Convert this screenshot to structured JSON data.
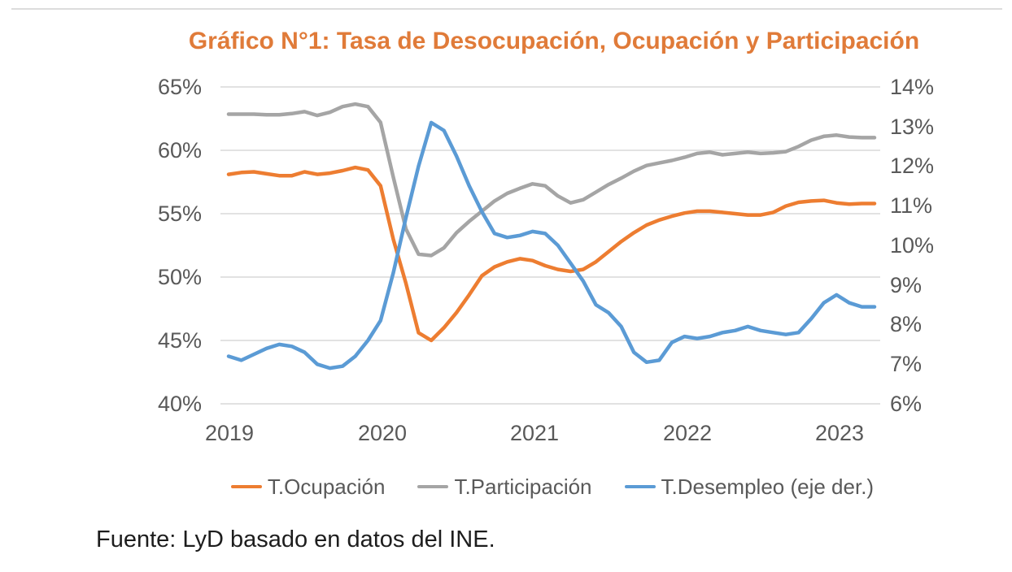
{
  "title": "Gráfico N°1: Tasa de Desocupación, Ocupación y Participación",
  "source_note": "Fuente: LyD basado en datos del INE.",
  "colors": {
    "title_orange": "#E07B39",
    "series_orange": "#ED7D31",
    "series_gray": "#A5A5A5",
    "series_blue": "#5B9BD5",
    "axis_text": "#595959",
    "gridline": "#D9D9D9"
  },
  "chart_data": {
    "type": "line",
    "title": "Gráfico N°1: Tasa de Desocupación, Ocupación y Participación",
    "x_unit": "month",
    "x_start": "2019-01",
    "x_end": "2023-04",
    "x_tick_labels": [
      "2019",
      "2020",
      "2021",
      "2022",
      "2023"
    ],
    "grid": "horizontal",
    "legend_position": "bottom",
    "left_axis": {
      "min": 40,
      "max": 65,
      "ticks": [
        "65%",
        "60%",
        "55%",
        "50%",
        "45%",
        "40%"
      ]
    },
    "right_axis": {
      "min": 6,
      "max": 14,
      "ticks": [
        "14%",
        "13%",
        "12%",
        "11%",
        "10%",
        "9%",
        "8%",
        "7%",
        "6%"
      ]
    },
    "series": [
      {
        "name": "T.Ocupación",
        "axis": "left",
        "color": "#ED7D31",
        "values": [
          58.1,
          58.25,
          58.3,
          58.15,
          58.0,
          58.0,
          58.3,
          58.1,
          58.2,
          58.4,
          58.65,
          58.45,
          57.2,
          53.0,
          49.5,
          45.6,
          45.0,
          46.0,
          47.2,
          48.6,
          50.1,
          50.8,
          51.2,
          51.45,
          51.3,
          50.9,
          50.6,
          50.45,
          50.6,
          51.2,
          52.0,
          52.8,
          53.5,
          54.1,
          54.5,
          54.8,
          55.05,
          55.2,
          55.2,
          55.1,
          55.0,
          54.9,
          54.9,
          55.1,
          55.6,
          55.9,
          56.0,
          56.05,
          55.85,
          55.75,
          55.8,
          55.8
        ]
      },
      {
        "name": "T.Participación",
        "axis": "left",
        "color": "#A5A5A5",
        "values": [
          62.85,
          62.85,
          62.85,
          62.8,
          62.8,
          62.9,
          63.05,
          62.75,
          63.0,
          63.45,
          63.65,
          63.45,
          62.2,
          57.9,
          53.8,
          51.8,
          51.7,
          52.3,
          53.5,
          54.4,
          55.2,
          56.0,
          56.6,
          57.0,
          57.35,
          57.2,
          56.4,
          55.85,
          56.1,
          56.7,
          57.3,
          57.8,
          58.35,
          58.8,
          59.0,
          59.2,
          59.45,
          59.75,
          59.85,
          59.65,
          59.75,
          59.85,
          59.75,
          59.8,
          59.9,
          60.3,
          60.8,
          61.1,
          61.2,
          61.05,
          61.0,
          61.0
        ]
      },
      {
        "name": "T.Desempleo (eje der.)",
        "axis": "right",
        "color": "#5B9BD5",
        "values": [
          7.2,
          7.1,
          7.25,
          7.4,
          7.5,
          7.45,
          7.3,
          7.0,
          6.9,
          6.95,
          7.2,
          7.6,
          8.1,
          9.3,
          10.7,
          12.0,
          13.1,
          12.9,
          12.25,
          11.5,
          10.85,
          10.3,
          10.2,
          10.25,
          10.35,
          10.3,
          10.0,
          9.55,
          9.1,
          8.5,
          8.3,
          7.95,
          7.3,
          7.05,
          7.1,
          7.55,
          7.7,
          7.65,
          7.7,
          7.8,
          7.85,
          7.95,
          7.85,
          7.8,
          7.75,
          7.8,
          8.15,
          8.55,
          8.75,
          8.55,
          8.45,
          8.45
        ]
      }
    ]
  }
}
